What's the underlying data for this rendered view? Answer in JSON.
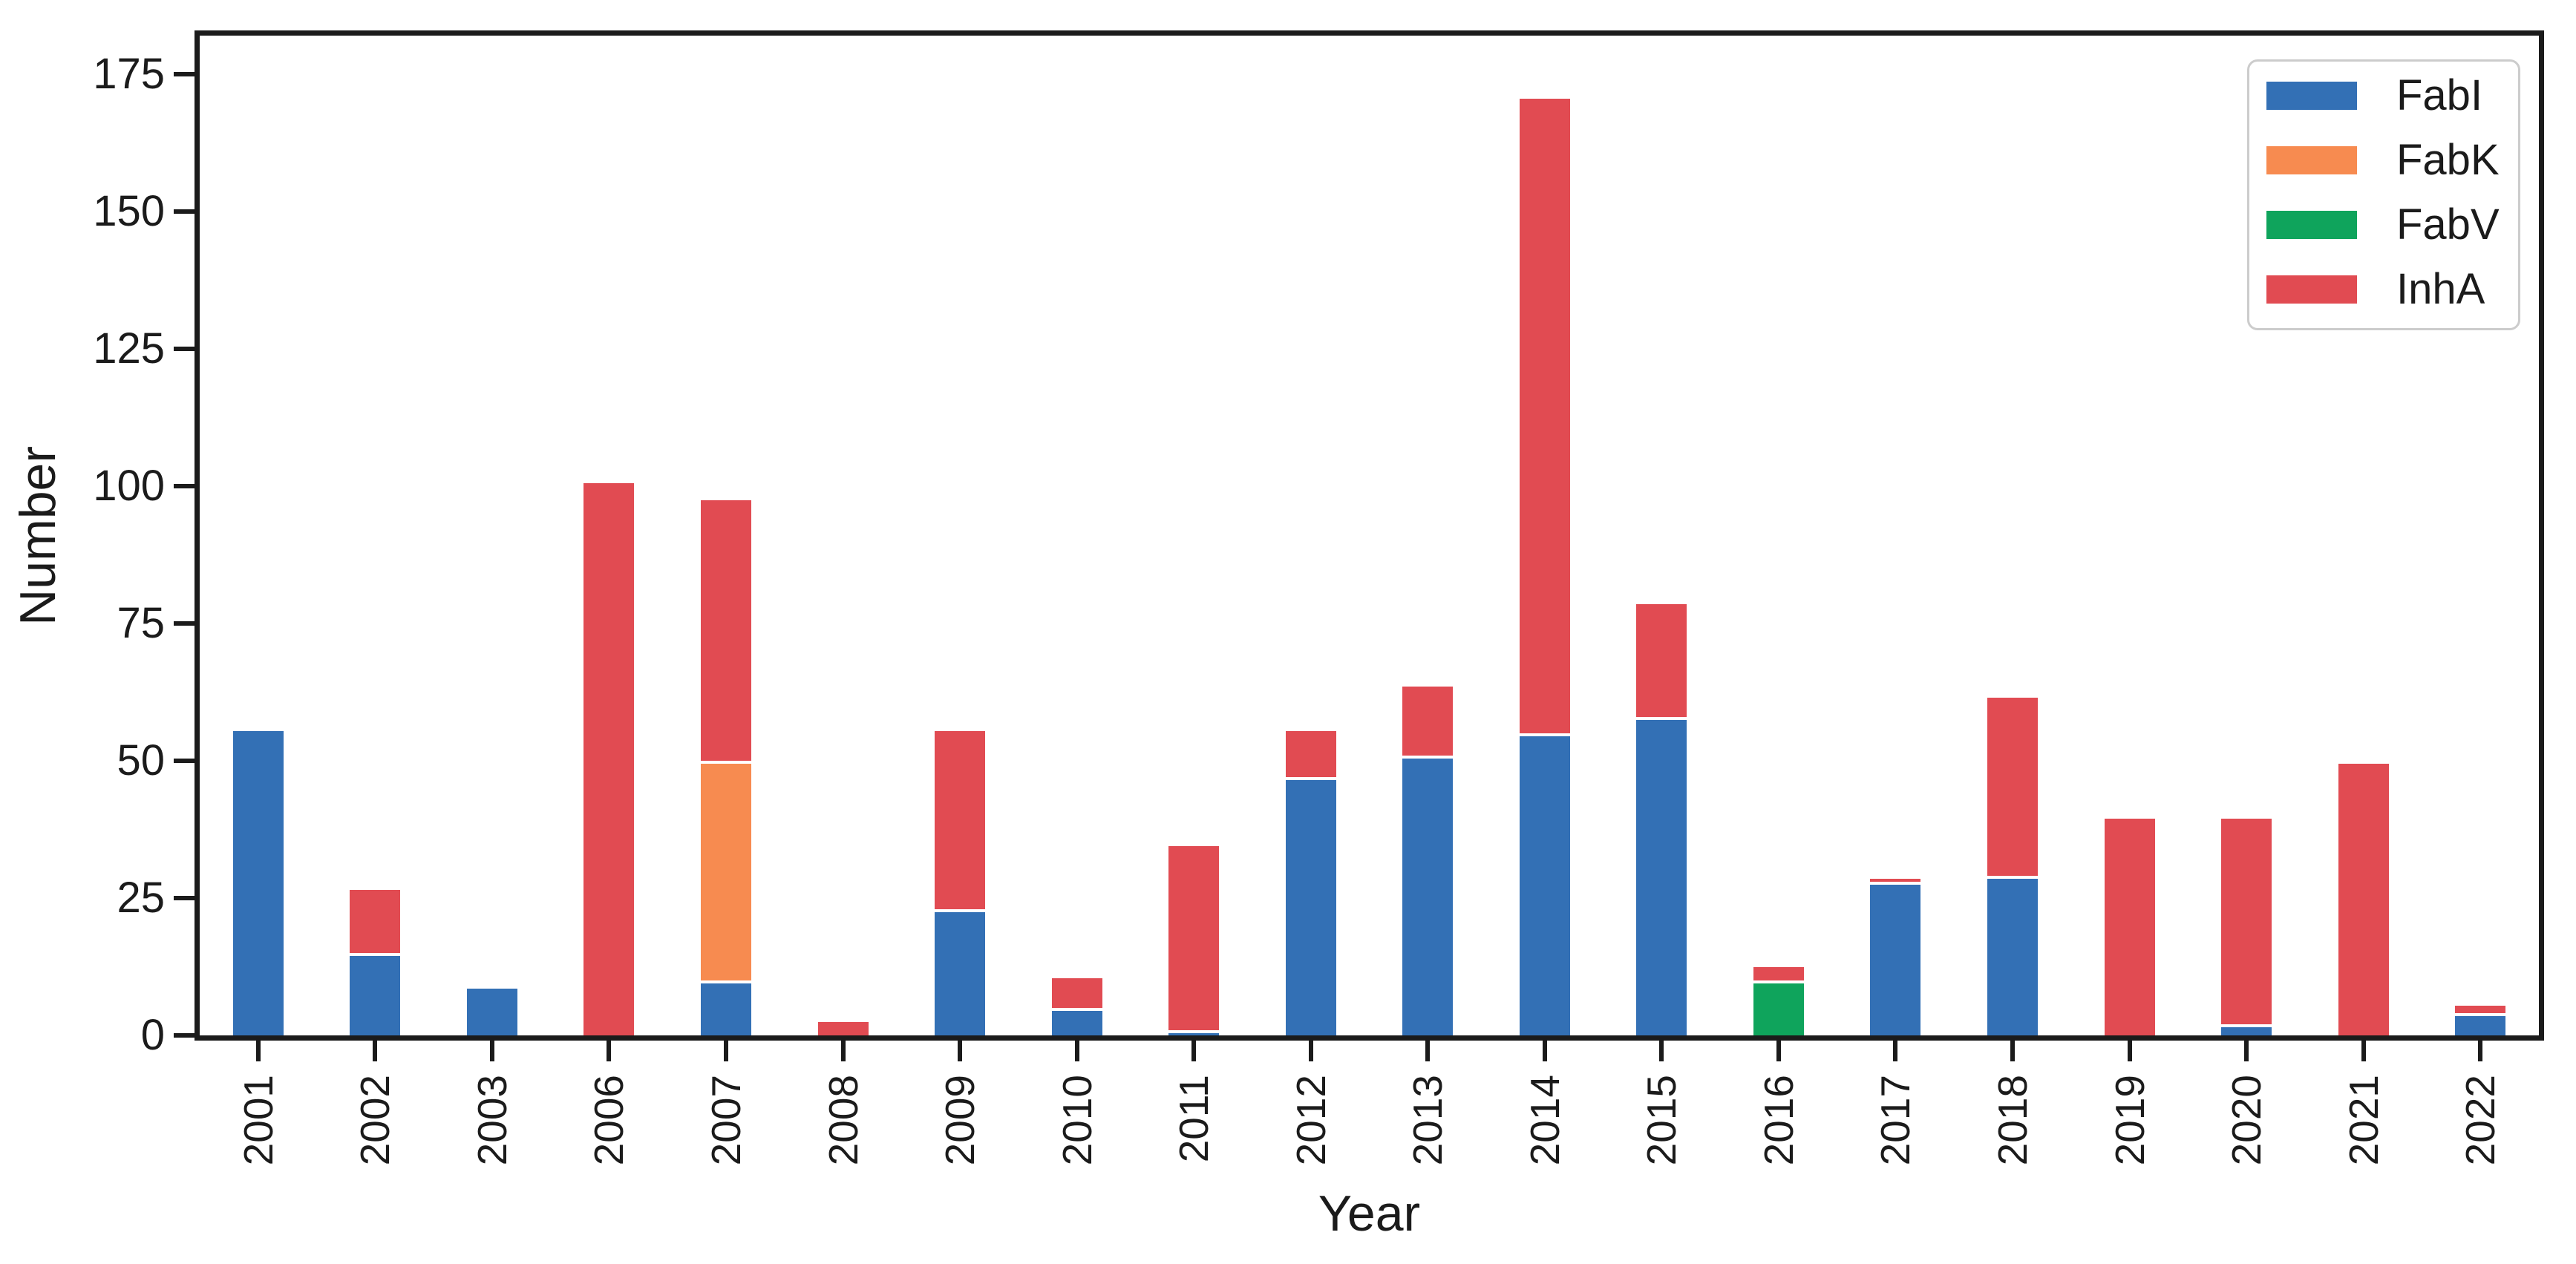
{
  "chart_data": {
    "type": "bar",
    "stacked": true,
    "title": "",
    "xlabel": "Year",
    "ylabel": "Number",
    "categories": [
      "2001",
      "2002",
      "2003",
      "2006",
      "2007",
      "2008",
      "2009",
      "2010",
      "2011",
      "2012",
      "2013",
      "2014",
      "2015",
      "2016",
      "2017",
      "2018",
      "2019",
      "2020",
      "2021",
      "2022"
    ],
    "series": [
      {
        "name": "FabI",
        "color": "#3370b5",
        "values": [
          56,
          15,
          9,
          0,
          10,
          0,
          23,
          5,
          1,
          47,
          51,
          55,
          58,
          0,
          28,
          29,
          0,
          2,
          0,
          4
        ]
      },
      {
        "name": "FabK",
        "color": "#f78b50",
        "values": [
          0,
          0,
          0,
          0,
          40,
          0,
          0,
          0,
          0,
          0,
          0,
          0,
          0,
          0,
          0,
          0,
          0,
          0,
          0,
          0
        ]
      },
      {
        "name": "FabV",
        "color": "#0fa45c",
        "values": [
          0,
          0,
          0,
          0,
          0,
          0,
          0,
          0,
          0,
          0,
          0,
          0,
          0,
          10,
          0,
          0,
          0,
          0,
          0,
          0
        ]
      },
      {
        "name": "InhA",
        "color": "#e14b52",
        "values": [
          0,
          12,
          0,
          101,
          48,
          3,
          33,
          6,
          34,
          9,
          13,
          116,
          21,
          3,
          1,
          33,
          40,
          38,
          50,
          2
        ]
      }
    ],
    "totals": [
      56,
      27,
      9,
      101,
      98,
      3,
      56,
      11,
      35,
      56,
      64,
      171,
      79,
      13,
      29,
      62,
      40,
      40,
      50,
      6
    ],
    "yticks": [
      0,
      25,
      50,
      75,
      100,
      125,
      150,
      175
    ],
    "ylim": [
      0,
      182
    ],
    "legend_position": "upper right",
    "grid": false,
    "axis_color": "#1b1b1b",
    "bar_edge_color": "#ffffff",
    "legend_border_color": "#cccccc",
    "background_color": "#ffffff"
  }
}
